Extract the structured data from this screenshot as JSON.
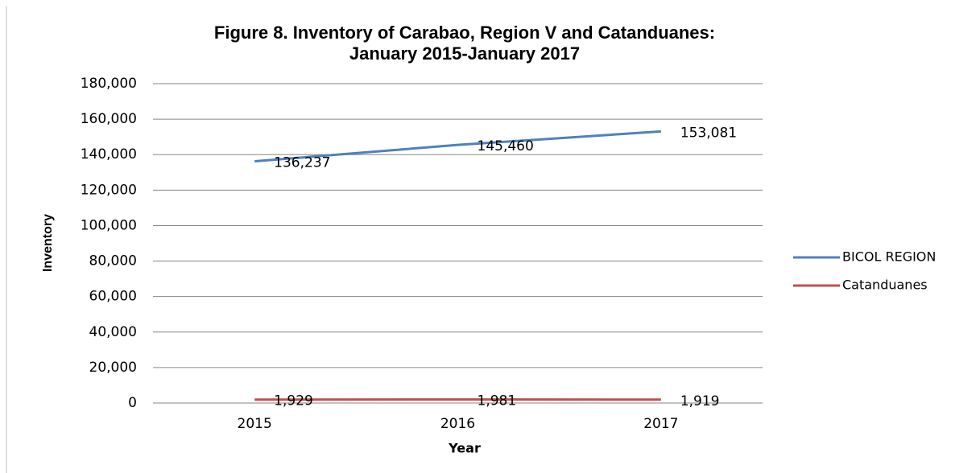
{
  "chart_data": {
    "type": "line",
    "title": "Figure 8. Inventory of Carabao, Region V and Catanduanes:",
    "subtitle": "January 2015-January 2017",
    "y_label": "Inventory",
    "x_label": "Year",
    "categories": [
      "2015",
      "2016",
      "2017"
    ],
    "series": [
      {
        "name": "BICOL REGION",
        "color": "#4f81bd",
        "values": [
          136237,
          145460,
          153081
        ],
        "value_labels": [
          "136,237",
          "145,460",
          "153,081"
        ]
      },
      {
        "name": "Catanduanes",
        "color": "#c0504d",
        "values": [
          1929,
          1981,
          1919
        ],
        "value_labels": [
          "1,929",
          "1,981",
          "1,919"
        ]
      }
    ],
    "ylim": [
      0,
      180000
    ],
    "yticks": [
      0,
      {
        "value": 20000,
        "label": "20,000"
      },
      {
        "value": 40000,
        "label": "40,000"
      },
      {
        "value": 60000,
        "label": "60,000"
      },
      {
        "value": 80000,
        "label": "80,000"
      },
      {
        "value": 100000,
        "label": "100,000"
      },
      {
        "value": 120000,
        "label": "120,000"
      },
      {
        "value": 140000,
        "label": "140,000"
      },
      {
        "value": 160000,
        "label": "160,000"
      },
      {
        "value": 180000,
        "label": "180,000"
      }
    ],
    "grid": true,
    "legend": "right"
  }
}
